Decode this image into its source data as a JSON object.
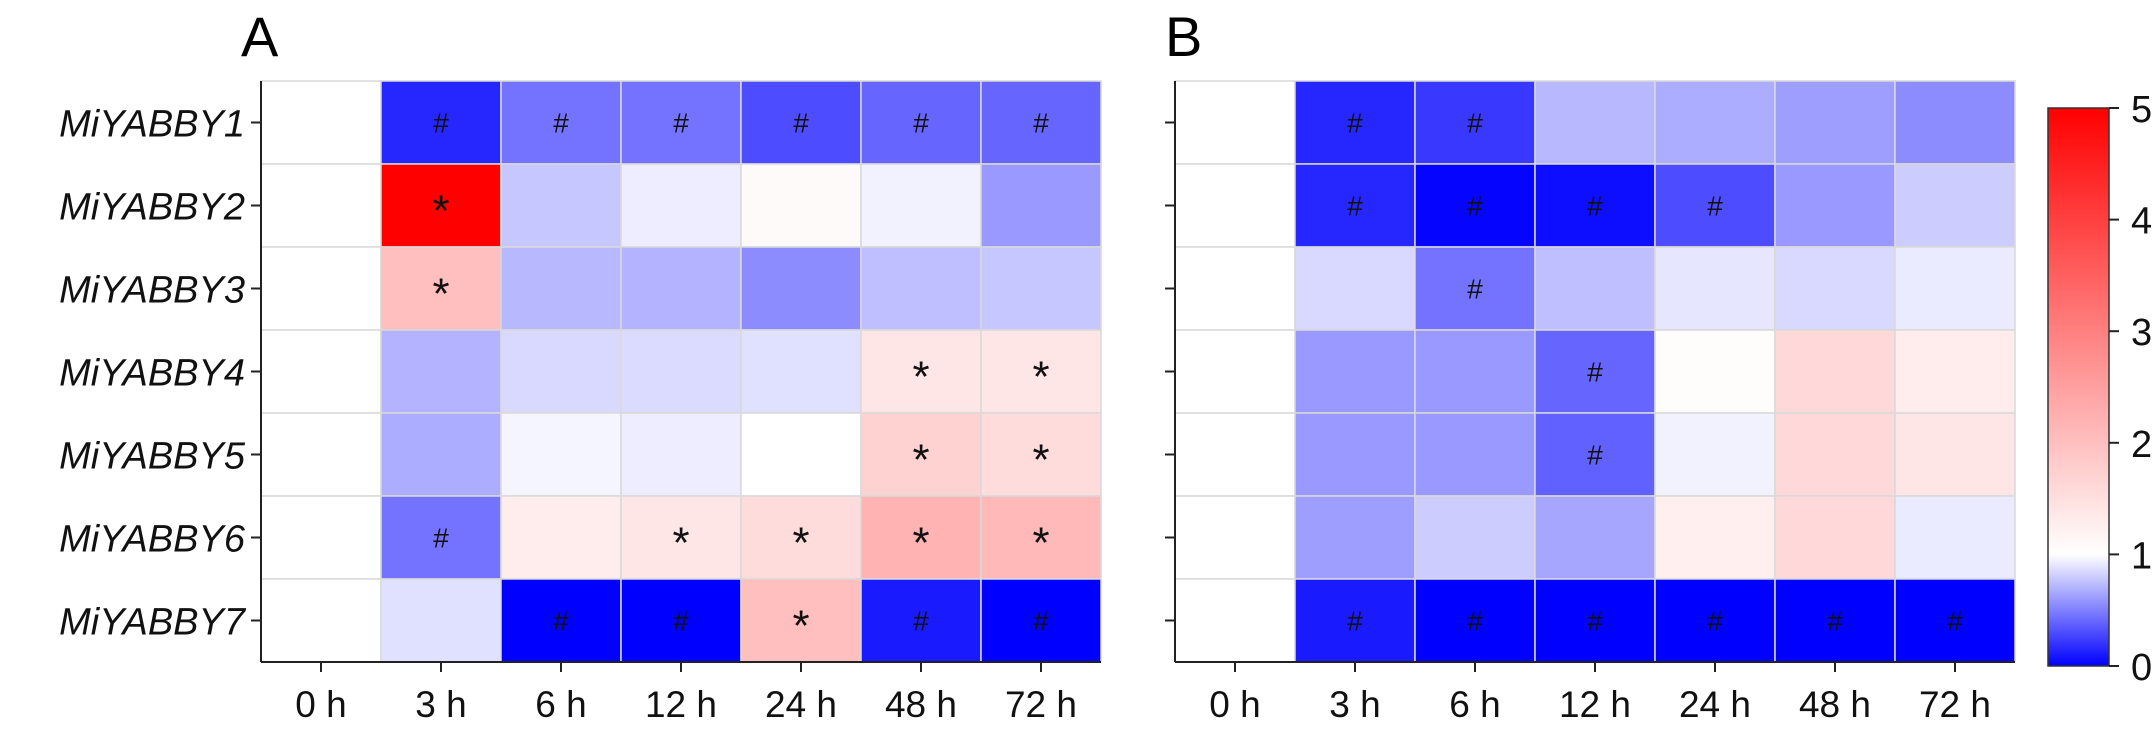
{
  "chart_data": [
    {
      "type": "heatmap",
      "panel_label": "A",
      "rows": [
        "MiYABBY1",
        "MiYABBY2",
        "MiYABBY3",
        "MiYABBY4",
        "MiYABBY5",
        "MiYABBY6",
        "MiYABBY7"
      ],
      "columns": [
        "0 h",
        "3 h",
        "6 h",
        "12 h",
        "24 h",
        "48 h",
        "72 h"
      ],
      "values": [
        [
          1.0,
          0.15,
          0.45,
          0.45,
          0.3,
          0.4,
          0.4
        ],
        [
          1.0,
          5.0,
          0.78,
          0.93,
          1.08,
          0.95,
          0.6
        ],
        [
          1.0,
          2.0,
          0.72,
          0.7,
          0.55,
          0.75,
          0.78
        ],
        [
          1.0,
          0.7,
          0.85,
          0.86,
          0.88,
          1.4,
          1.4
        ],
        [
          1.0,
          0.68,
          0.96,
          0.93,
          1.0,
          1.7,
          1.55
        ],
        [
          1.0,
          0.45,
          1.3,
          1.4,
          1.55,
          2.2,
          2.1
        ],
        [
          1.0,
          0.88,
          0.0,
          0.0,
          2.0,
          0.1,
          0.0
        ]
      ],
      "markers": [
        [
          "",
          "#",
          "#",
          "#",
          "#",
          "#",
          "#"
        ],
        [
          "",
          "*",
          "",
          "",
          "",
          "",
          ""
        ],
        [
          "",
          "*",
          "",
          "",
          "",
          "",
          ""
        ],
        [
          "",
          "",
          "",
          "",
          "",
          "*",
          "*"
        ],
        [
          "",
          "",
          "",
          "",
          "",
          "*",
          "*"
        ],
        [
          "",
          "#",
          "",
          "*",
          "*",
          "*",
          "*"
        ],
        [
          "",
          "",
          "#",
          "#",
          "*",
          "#",
          "#"
        ]
      ]
    },
    {
      "type": "heatmap",
      "panel_label": "B",
      "rows": [
        "MiYABBY1",
        "MiYABBY2",
        "MiYABBY3",
        "MiYABBY4",
        "MiYABBY5",
        "MiYABBY6",
        "MiYABBY7"
      ],
      "columns": [
        "0 h",
        "3 h",
        "6 h",
        "12 h",
        "24 h",
        "48 h",
        "72 h"
      ],
      "values": [
        [
          1.0,
          0.15,
          0.22,
          0.72,
          0.68,
          0.62,
          0.55
        ],
        [
          1.0,
          0.15,
          0.02,
          0.05,
          0.3,
          0.6,
          0.8
        ],
        [
          1.0,
          0.85,
          0.45,
          0.75,
          0.9,
          0.85,
          0.92
        ],
        [
          1.0,
          0.6,
          0.6,
          0.4,
          1.05,
          1.6,
          1.3
        ],
        [
          1.0,
          0.6,
          0.6,
          0.38,
          0.95,
          1.6,
          1.4
        ],
        [
          1.0,
          0.62,
          0.8,
          0.65,
          1.25,
          1.6,
          0.92
        ],
        [
          1.0,
          0.1,
          0.0,
          0.0,
          0.0,
          0.0,
          0.0
        ]
      ],
      "markers": [
        [
          "",
          "#",
          "#",
          "",
          "",
          "",
          ""
        ],
        [
          "",
          "#",
          "#",
          "#",
          "#",
          "",
          ""
        ],
        [
          "",
          "",
          "#",
          "",
          "",
          "",
          ""
        ],
        [
          "",
          "",
          "",
          "#",
          "",
          "",
          ""
        ],
        [
          "",
          "",
          "",
          "#",
          "",
          "",
          ""
        ],
        [
          "",
          "",
          "",
          "",
          "",
          "",
          ""
        ],
        [
          "",
          "#",
          "#",
          "#",
          "#",
          "#",
          "#"
        ]
      ]
    }
  ],
  "colorbar": {
    "min": 0,
    "max": 5,
    "midpoint": 1,
    "ticks": [
      "0",
      "1",
      "2",
      "3",
      "4",
      "5"
    ],
    "colors": {
      "low": "#0000ff",
      "mid": "#ffffff",
      "high": "#ff0000"
    }
  }
}
